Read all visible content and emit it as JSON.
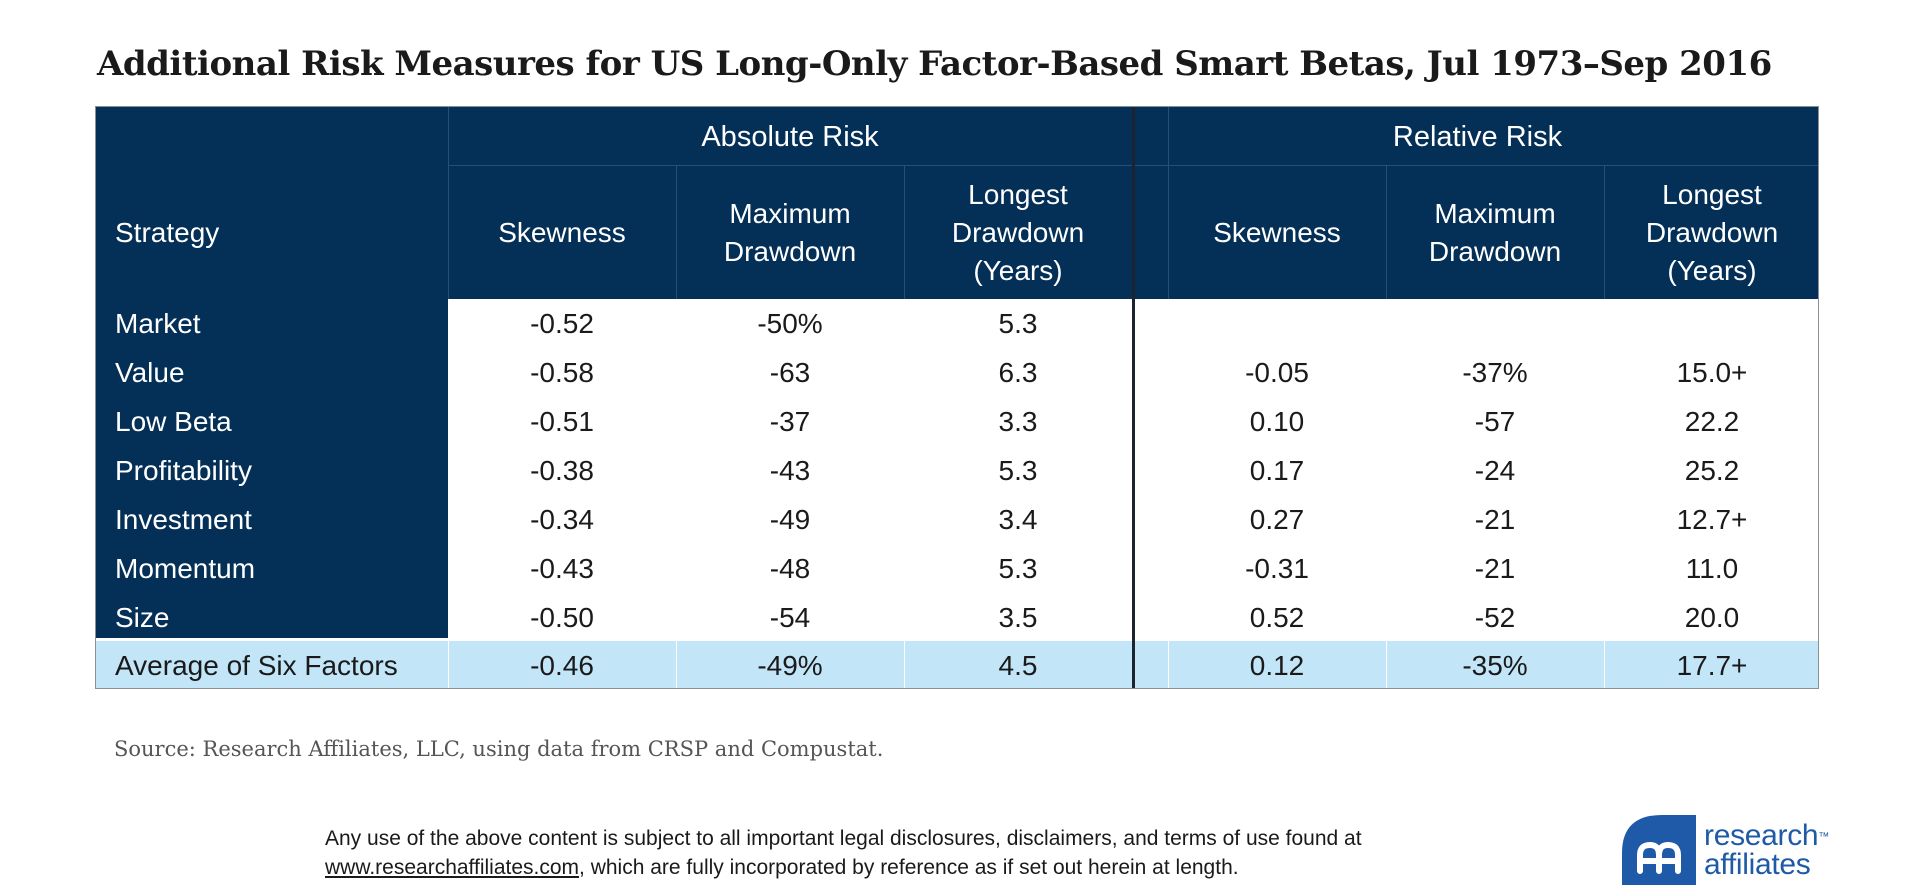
{
  "title": "Additional Risk Measures for US Long-Only Factor-Based Smart Betas, Jul 1973–Sep 2016",
  "table": {
    "group_headers": {
      "absolute": "Absolute Risk",
      "relative": "Relative Risk"
    },
    "col_headers": {
      "strategy": "Strategy",
      "abs_skewness": "Skewness",
      "abs_max_dd_1": "Maximum",
      "abs_max_dd_2": "Drawdown",
      "abs_longest_1": "Longest",
      "abs_longest_2": "Drawdown",
      "abs_longest_3": "(Years)",
      "rel_skewness": "Skewness",
      "rel_max_dd_1": "Maximum",
      "rel_max_dd_2": "Drawdown",
      "rel_longest_1": "Longest",
      "rel_longest_2": "Drawdown",
      "rel_longest_3": "(Years)"
    },
    "rows": [
      {
        "strategy": "Market",
        "abs_skew": "-0.52",
        "abs_mdd": "-50%",
        "abs_ldd": "5.3",
        "rel_skew": "",
        "rel_mdd": "",
        "rel_ldd": ""
      },
      {
        "strategy": "Value",
        "abs_skew": "-0.58",
        "abs_mdd": "-63",
        "abs_ldd": "6.3",
        "rel_skew": "-0.05",
        "rel_mdd": "-37%",
        "rel_ldd": "15.0+"
      },
      {
        "strategy": "Low Beta",
        "abs_skew": "-0.51",
        "abs_mdd": "-37",
        "abs_ldd": "3.3",
        "rel_skew": "0.10",
        "rel_mdd": "-57",
        "rel_ldd": "22.2"
      },
      {
        "strategy": "Profitability",
        "abs_skew": "-0.38",
        "abs_mdd": "-43",
        "abs_ldd": "5.3",
        "rel_skew": "0.17",
        "rel_mdd": "-24",
        "rel_ldd": "25.2"
      },
      {
        "strategy": "Investment",
        "abs_skew": "-0.34",
        "abs_mdd": "-49",
        "abs_ldd": "3.4",
        "rel_skew": "0.27",
        "rel_mdd": "-21",
        "rel_ldd": "12.7+"
      },
      {
        "strategy": "Momentum",
        "abs_skew": "-0.43",
        "abs_mdd": "-48",
        "abs_ldd": "5.3",
        "rel_skew": "-0.31",
        "rel_mdd": "-21",
        "rel_ldd": "11.0"
      },
      {
        "strategy": "Size",
        "abs_skew": "-0.50",
        "abs_mdd": "-54",
        "abs_ldd": "3.5",
        "rel_skew": "0.52",
        "rel_mdd": "-52",
        "rel_ldd": "20.0"
      }
    ],
    "average": {
      "strategy": "Average of Six Factors",
      "abs_skew": "-0.46",
      "abs_mdd": "-49%",
      "abs_ldd": "4.5",
      "rel_skew": "0.12",
      "rel_mdd": "-35%",
      "rel_ldd": "17.7+"
    }
  },
  "source": "Source: Research Affiliates, LLC, using data from CRSP and Compustat.",
  "disclaimer": {
    "line1": "Any use of the above content is subject to all important legal disclosures, disclaimers, and terms of use found at",
    "link": "www.researchaffiliates.com",
    "line2_rest": ", which are fully incorporated by reference as if set out herein at length."
  },
  "logo": {
    "line1": "research",
    "tm": "™",
    "line2": "affiliates"
  },
  "colors": {
    "navy": "#042f56",
    "avg_row": "#c2e5f8",
    "logo_blue": "#1e5aa8"
  }
}
